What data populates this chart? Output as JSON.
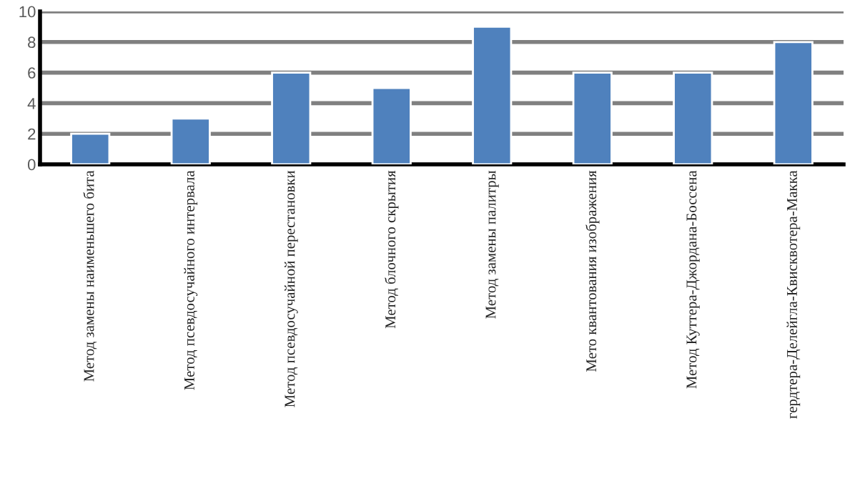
{
  "chart_data": {
    "type": "bar",
    "categories": [
      "Метод замены наименьшего бита",
      "Метод псевдосучайного интервала",
      "Метод псевдосучайной перестановки",
      "Метод блочного скрытия",
      "Метод замены палитры",
      "Мето квантования изображения",
      "Метод Куттера-Джордана-Боссена",
      "гердтера-Делейгла-Квисквотера-Макка"
    ],
    "values": [
      2,
      3,
      6,
      5,
      9,
      6,
      6,
      8
    ],
    "color": "#4f81bd",
    "ylim": [
      0,
      10
    ],
    "yticks": [
      0,
      2,
      4,
      6,
      8,
      10
    ],
    "grid": "y"
  }
}
